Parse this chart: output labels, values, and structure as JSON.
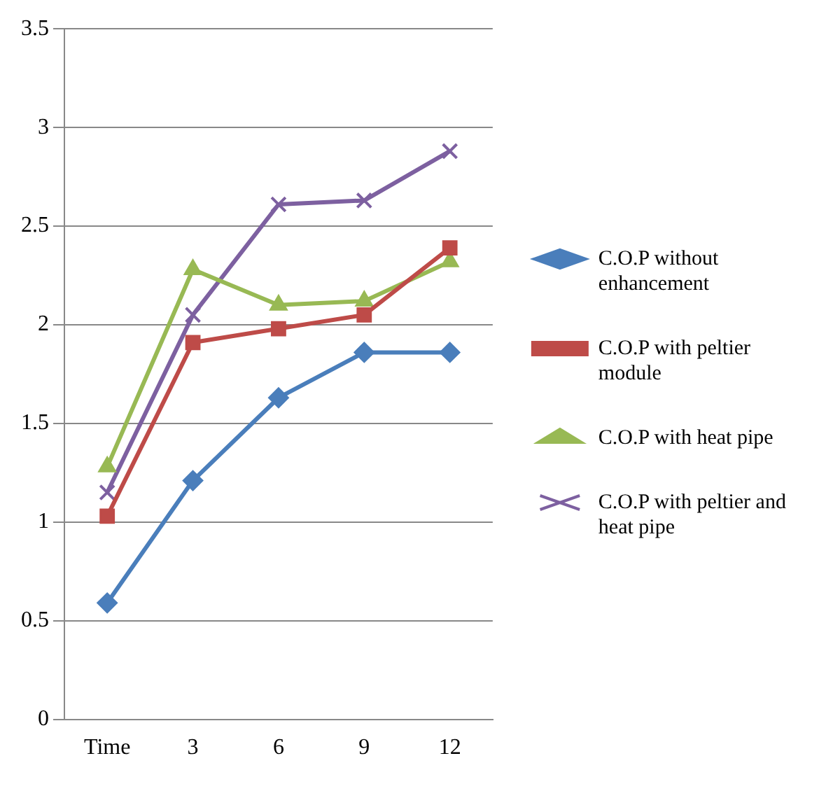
{
  "chart_data": {
    "type": "line",
    "categories": [
      "Time",
      "3",
      "6",
      "9",
      "12"
    ],
    "ylim": [
      0,
      3.5
    ],
    "yticks": [
      0,
      0.5,
      1,
      1.5,
      2,
      2.5,
      3,
      3.5
    ],
    "grid": "y",
    "legend": "right",
    "line_style": "solid",
    "series": [
      {
        "name": "C.O.P without enhancement",
        "color": "#4a7ebb",
        "marker": "diamond",
        "values": [
          0.59,
          1.21,
          1.63,
          1.86,
          1.86
        ]
      },
      {
        "name": "C.O.P with peltier module",
        "color": "#be4b48",
        "marker": "square",
        "values": [
          1.03,
          1.91,
          1.98,
          2.05,
          2.39
        ]
      },
      {
        "name": "C.O.P with heat pipe",
        "color": "#98b954",
        "marker": "triangle",
        "values": [
          1.28,
          2.28,
          2.1,
          2.12,
          2.32
        ]
      },
      {
        "name": "C.O.P with peltier and heat pipe",
        "color": "#7d60a0",
        "marker": "cross",
        "values": [
          1.15,
          2.05,
          2.61,
          2.63,
          2.88
        ]
      }
    ]
  }
}
